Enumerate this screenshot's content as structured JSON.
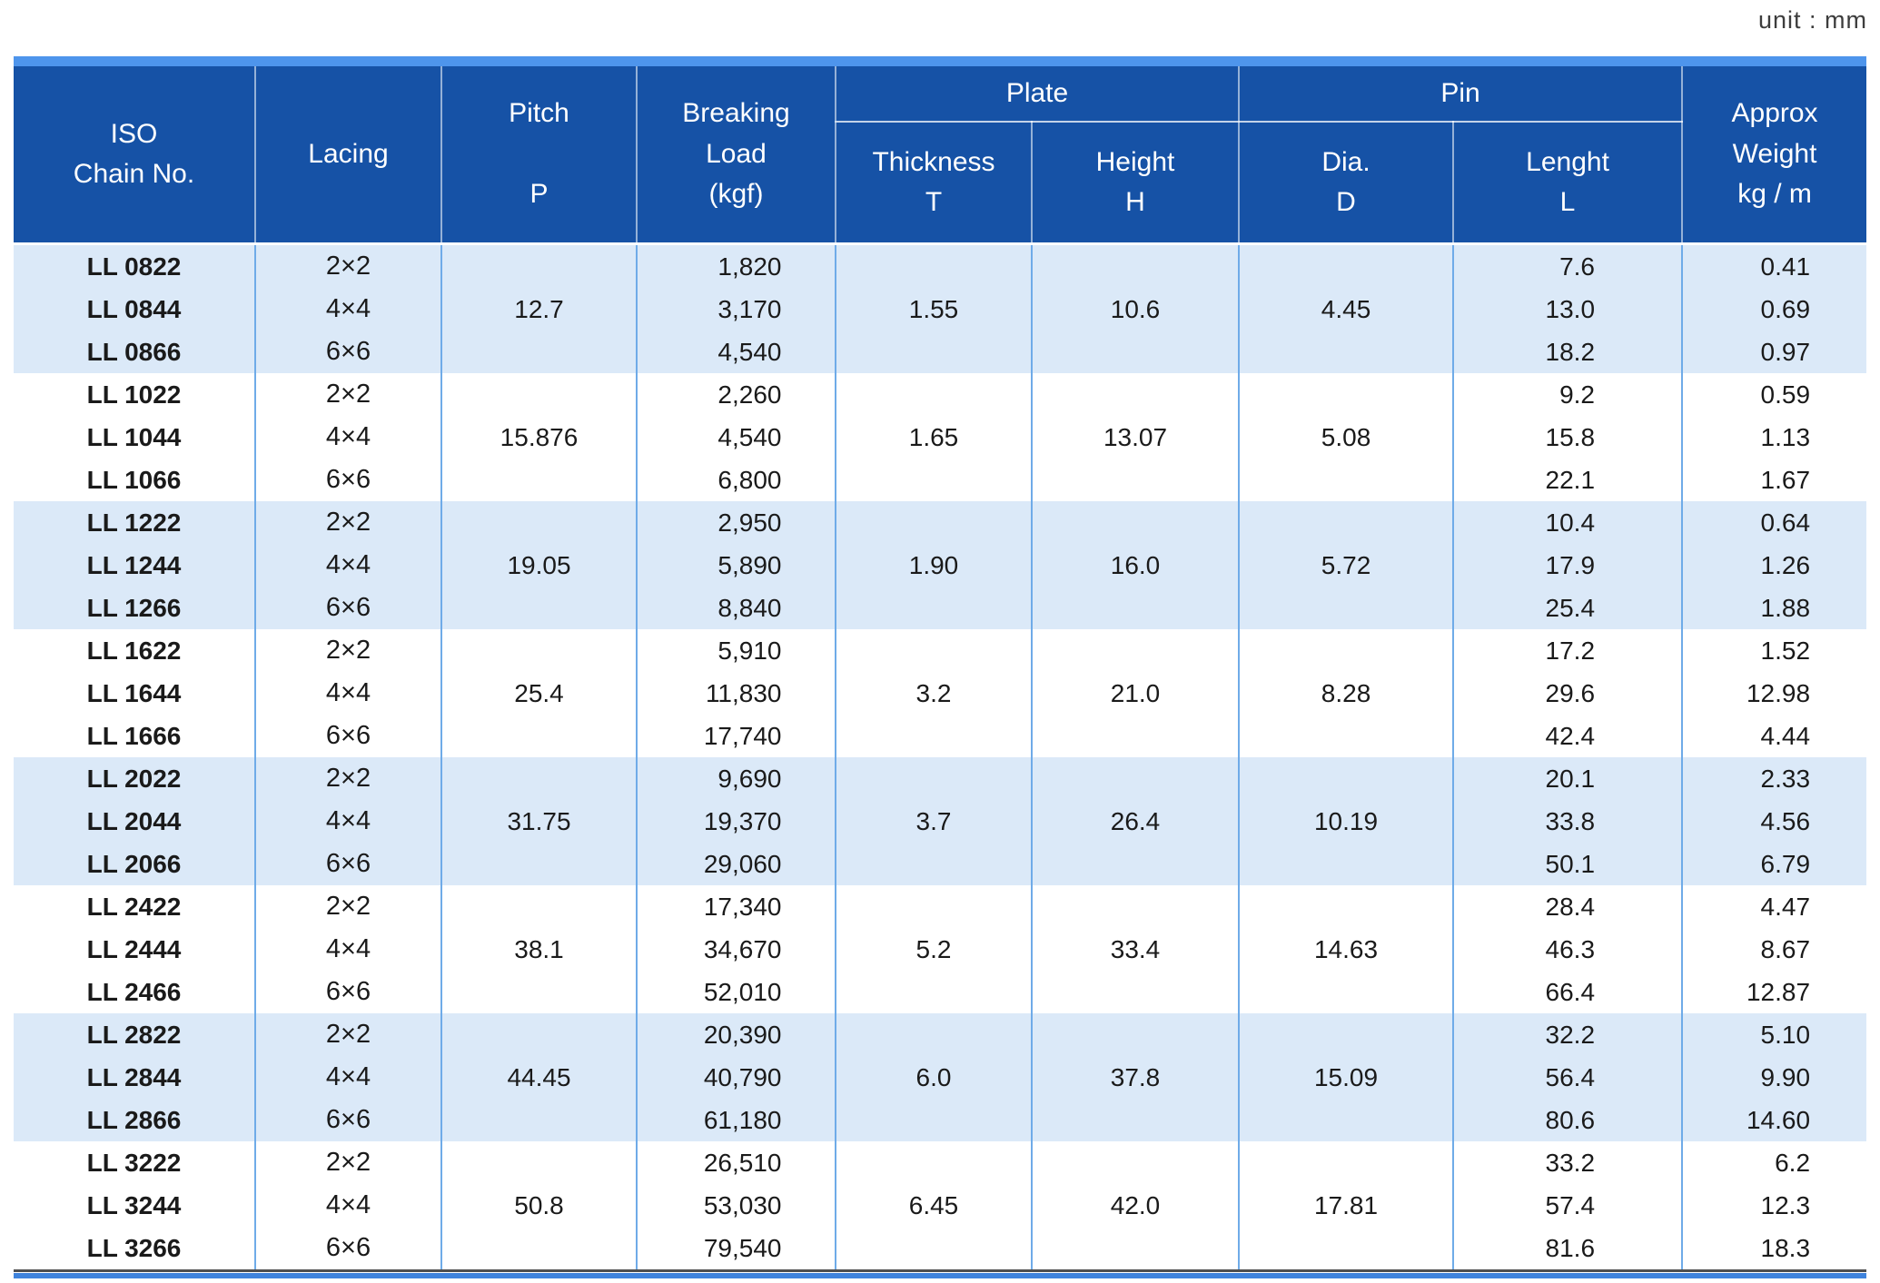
{
  "meta": {
    "unit_label": "unit : mm"
  },
  "colors": {
    "header_blue": "#1652a6",
    "top_accent_bar": "#4e95ec",
    "row_shade": "#dbe9f8",
    "grid_line": "#6fabe8",
    "bottom_accent_bar": "#3f83dc"
  },
  "table": {
    "header": {
      "iso_chain_no": "ISO\nChain No.",
      "lacing": "Lacing",
      "pitch": "Pitch\n\nP",
      "breaking_load": "Breaking\nLoad\n(kgf)",
      "plate": "Plate",
      "pin": "Pin",
      "thickness": "Thickness\nT",
      "height": "Height\nH",
      "dia": "Dia.\nD",
      "length": "Lenght\nL",
      "approx_weight": "Approx\nWeight\nkg / m"
    },
    "groups": [
      {
        "shaded": true,
        "pitch": "12.7",
        "thickness": "1.55",
        "height": "10.6",
        "dia": "4.45",
        "rows": [
          {
            "chain_no": "LL 0822",
            "lacing": "2×2",
            "breaking_load": "1,820",
            "length": "7.6",
            "weight": "0.41"
          },
          {
            "chain_no": "LL 0844",
            "lacing": "4×4",
            "breaking_load": "3,170",
            "length": "13.0",
            "weight": "0.69"
          },
          {
            "chain_no": "LL 0866",
            "lacing": "6×6",
            "breaking_load": "4,540",
            "length": "18.2",
            "weight": "0.97"
          }
        ]
      },
      {
        "shaded": false,
        "pitch": "15.876",
        "thickness": "1.65",
        "height": "13.07",
        "dia": "5.08",
        "rows": [
          {
            "chain_no": "LL 1022",
            "lacing": "2×2",
            "breaking_load": "2,260",
            "length": "9.2",
            "weight": "0.59"
          },
          {
            "chain_no": "LL 1044",
            "lacing": "4×4",
            "breaking_load": "4,540",
            "length": "15.8",
            "weight": "1.13"
          },
          {
            "chain_no": "LL 1066",
            "lacing": "6×6",
            "breaking_load": "6,800",
            "length": "22.1",
            "weight": "1.67"
          }
        ]
      },
      {
        "shaded": true,
        "pitch": "19.05",
        "thickness": "1.90",
        "height": "16.0",
        "dia": "5.72",
        "rows": [
          {
            "chain_no": "LL 1222",
            "lacing": "2×2",
            "breaking_load": "2,950",
            "length": "10.4",
            "weight": "0.64"
          },
          {
            "chain_no": "LL 1244",
            "lacing": "4×4",
            "breaking_load": "5,890",
            "length": "17.9",
            "weight": "1.26"
          },
          {
            "chain_no": "LL 1266",
            "lacing": "6×6",
            "breaking_load": "8,840",
            "length": "25.4",
            "weight": "1.88"
          }
        ]
      },
      {
        "shaded": false,
        "pitch": "25.4",
        "thickness": "3.2",
        "height": "21.0",
        "dia": "8.28",
        "rows": [
          {
            "chain_no": "LL 1622",
            "lacing": "2×2",
            "breaking_load": "5,910",
            "length": "17.2",
            "weight": "1.52"
          },
          {
            "chain_no": "LL 1644",
            "lacing": "4×4",
            "breaking_load": "11,830",
            "length": "29.6",
            "weight": "12.98"
          },
          {
            "chain_no": "LL 1666",
            "lacing": "6×6",
            "breaking_load": "17,740",
            "length": "42.4",
            "weight": "4.44"
          }
        ]
      },
      {
        "shaded": true,
        "pitch": "31.75",
        "thickness": "3.7",
        "height": "26.4",
        "dia": "10.19",
        "rows": [
          {
            "chain_no": "LL 2022",
            "lacing": "2×2",
            "breaking_load": "9,690",
            "length": "20.1",
            "weight": "2.33"
          },
          {
            "chain_no": "LL 2044",
            "lacing": "4×4",
            "breaking_load": "19,370",
            "length": "33.8",
            "weight": "4.56"
          },
          {
            "chain_no": "LL 2066",
            "lacing": "6×6",
            "breaking_load": "29,060",
            "length": "50.1",
            "weight": "6.79"
          }
        ]
      },
      {
        "shaded": false,
        "pitch": "38.1",
        "thickness": "5.2",
        "height": "33.4",
        "dia": "14.63",
        "rows": [
          {
            "chain_no": "LL 2422",
            "lacing": "2×2",
            "breaking_load": "17,340",
            "length": "28.4",
            "weight": "4.47"
          },
          {
            "chain_no": "LL 2444",
            "lacing": "4×4",
            "breaking_load": "34,670",
            "length": "46.3",
            "weight": "8.67"
          },
          {
            "chain_no": "LL 2466",
            "lacing": "6×6",
            "breaking_load": "52,010",
            "length": "66.4",
            "weight": "12.87"
          }
        ]
      },
      {
        "shaded": true,
        "pitch": "44.45",
        "thickness": "6.0",
        "height": "37.8",
        "dia": "15.09",
        "rows": [
          {
            "chain_no": "LL 2822",
            "lacing": "2×2",
            "breaking_load": "20,390",
            "length": "32.2",
            "weight": "5.10"
          },
          {
            "chain_no": "LL 2844",
            "lacing": "4×4",
            "breaking_load": "40,790",
            "length": "56.4",
            "weight": "9.90"
          },
          {
            "chain_no": "LL 2866",
            "lacing": "6×6",
            "breaking_load": "61,180",
            "length": "80.6",
            "weight": "14.60"
          }
        ]
      },
      {
        "shaded": false,
        "pitch": "50.8",
        "thickness": "6.45",
        "height": "42.0",
        "dia": "17.81",
        "rows": [
          {
            "chain_no": "LL 3222",
            "lacing": "2×2",
            "breaking_load": "26,510",
            "length": "33.2",
            "weight": "6.2"
          },
          {
            "chain_no": "LL 3244",
            "lacing": "4×4",
            "breaking_load": "53,030",
            "length": "57.4",
            "weight": "12.3"
          },
          {
            "chain_no": "LL 3266",
            "lacing": "6×6",
            "breaking_load": "79,540",
            "length": "81.6",
            "weight": "18.3"
          }
        ]
      }
    ]
  }
}
